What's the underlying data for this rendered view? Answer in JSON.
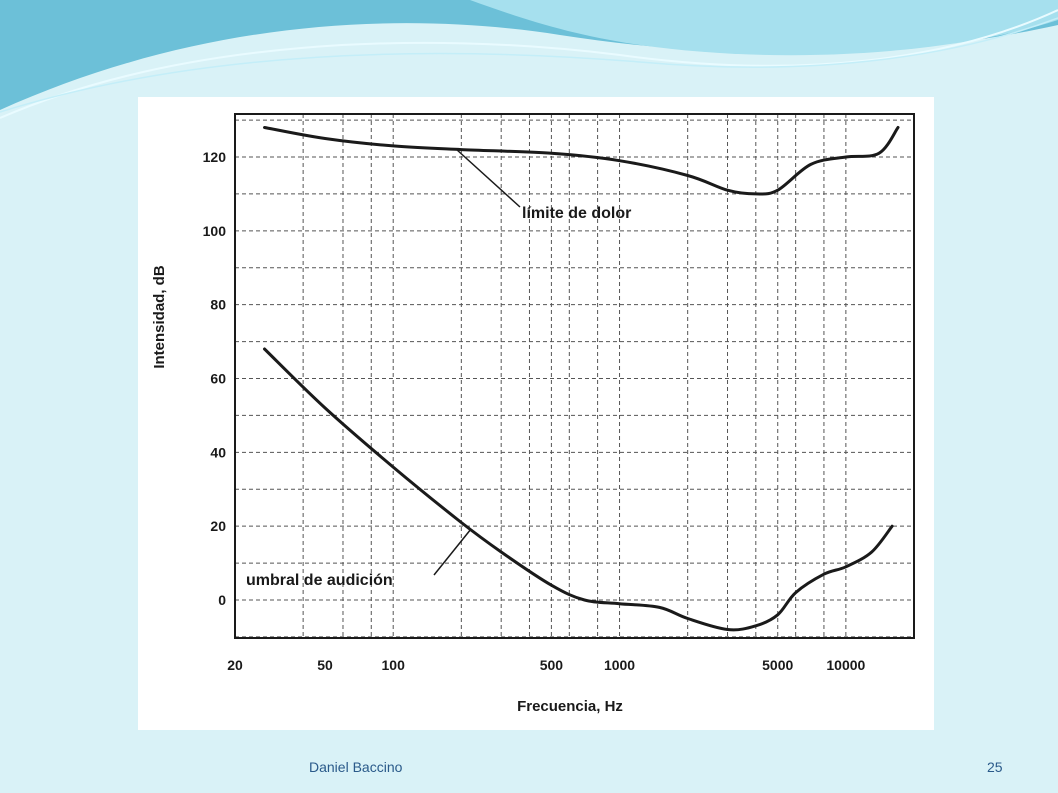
{
  "footer": {
    "author": "Daniel  Baccino",
    "page_number": "25"
  },
  "colors": {
    "background": "#d9f2f7",
    "header_wave": "#7fc9dd",
    "footer_text": "#2a5a8a",
    "chart_ink": "#1a1a1a"
  },
  "chart_data": {
    "type": "line",
    "xlabel": "Frecuencia, Hz",
    "ylabel": "Intensidad, dB",
    "x_scale": "log",
    "xlim": [
      20,
      20000
    ],
    "ylim": [
      -10,
      130
    ],
    "grid": true,
    "x_ticks": [
      20,
      50,
      100,
      500,
      1000,
      5000,
      10000
    ],
    "x_tick_labels": [
      "20",
      "50",
      "100",
      "500",
      "1000",
      "5000",
      "10000"
    ],
    "y_ticks": [
      0,
      20,
      40,
      60,
      80,
      100,
      120
    ],
    "y_tick_labels": [
      "0",
      "20",
      "40",
      "60",
      "80",
      "100",
      "120"
    ],
    "series": [
      {
        "name": "límite de dolor",
        "x": [
          27,
          50,
          100,
          200,
          500,
          1000,
          2000,
          3000,
          4000,
          5000,
          7000,
          10000,
          14000,
          17000
        ],
        "y": [
          128,
          125,
          123,
          122,
          121,
          119,
          115,
          111,
          110,
          111,
          118,
          120,
          121,
          128
        ]
      },
      {
        "name": "umbral de audición",
        "x": [
          27,
          50,
          100,
          200,
          300,
          500,
          700,
          1000,
          1500,
          2000,
          3000,
          4000,
          5000,
          6000,
          8000,
          10000,
          13000,
          16000
        ],
        "y": [
          68,
          52,
          36,
          21,
          13,
          4,
          0,
          -1,
          -2,
          -5,
          -8,
          -7,
          -4,
          2,
          7,
          9,
          13,
          20
        ]
      }
    ],
    "annotations": [
      {
        "text": "límite de dolor",
        "points_to_x": 200,
        "points_to_y": 122
      },
      {
        "text": "umbral de audición",
        "points_to_x": 300,
        "points_to_y": 20
      }
    ]
  }
}
